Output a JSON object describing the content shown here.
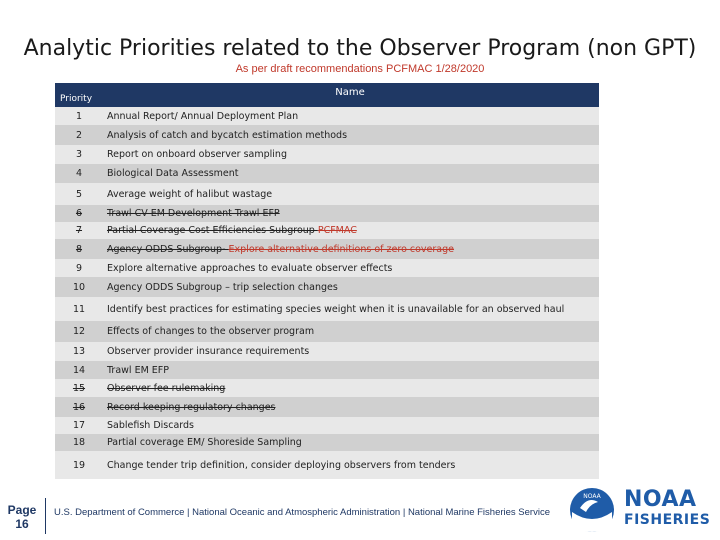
{
  "title": "Analytic Priorities related to the Observer Program (non GPT)",
  "subtitle": "As per draft recommendations PCFMAC 1/28/2020",
  "table": {
    "header_priority": "Priority",
    "header_name": "Name",
    "rows": [
      {
        "num": "1",
        "name": "Annual Report/ Annual Deployment Plan"
      },
      {
        "num": "2",
        "name": "Analysis of catch and bycatch estimation methods"
      },
      {
        "num": "3",
        "name": "Report on onboard observer sampling"
      },
      {
        "num": "4",
        "name": "Biological Data Assessment"
      },
      {
        "num": "5",
        "name": "Average weight of halibut wastage"
      },
      {
        "num": "6",
        "name": "Trawl CV EM Development Trawl EFP"
      },
      {
        "num": "7",
        "name": "Partial Coverage Cost Efficiencies Subgroup ",
        "name_red": "PCFMAC"
      },
      {
        "num": "8",
        "name": "Agency ODDS Subgroup- ",
        "name_red": "Explore alternative definitions of zero coverage"
      },
      {
        "num": "9",
        "name": "Explore alternative approaches to evaluate observer effects"
      },
      {
        "num": "10",
        "name": "Agency ODDS Subgroup – trip selection changes"
      },
      {
        "num": "11",
        "name": "Identify best practices for estimating species weight when it is unavailable for an observed haul"
      },
      {
        "num": "12",
        "name": "Effects of changes to the observer program"
      },
      {
        "num": "13",
        "name": "Observer provider insurance requirements"
      },
      {
        "num": "14",
        "name": "Trawl EM EFP"
      },
      {
        "num": "15",
        "name": "Observer fee rulemaking"
      },
      {
        "num": "16",
        "name": "Record keeping regulatory changes"
      },
      {
        "num": "17",
        "name": "Sablefish Discards"
      },
      {
        "num": "18",
        "name": "Partial coverage EM/ Shoreside Sampling"
      },
      {
        "num": "19",
        "name": "Change tender trip definition, consider deploying observers from tenders"
      }
    ]
  },
  "footer": {
    "page_label": "Page",
    "page_number": "16",
    "text": "U.S. Department of Commerce | National Oceanic and Atmospheric Administration | National Marine Fisheries Service"
  },
  "logo": {
    "small": "NOAA",
    "line1": "NOAA",
    "line2": "FISHERIES"
  },
  "colors": {
    "header_bg": "#1f3864",
    "strike_red": "#c0392b",
    "brand_blue": "#1f5ca8"
  }
}
